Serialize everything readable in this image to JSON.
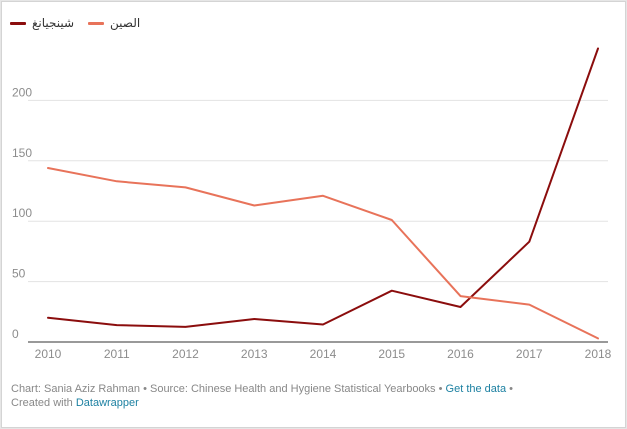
{
  "chart_data": {
    "type": "line",
    "title": "",
    "xlabel": "",
    "ylabel": "",
    "x": [
      2010,
      2011,
      2012,
      2013,
      2014,
      2015,
      2016,
      2017,
      2018
    ],
    "ylim": [
      0,
      250
    ],
    "yticks": [
      0,
      50,
      100,
      150,
      200
    ],
    "xtick_labels": [
      "2010",
      "2011",
      "2012",
      "2013",
      "2014",
      "2015",
      "2016",
      "2017",
      "2018"
    ],
    "ytick_labels": [
      "0",
      "50",
      "100",
      "150",
      "200"
    ],
    "grid": true,
    "legend_position": "top-left",
    "series": [
      {
        "name": "شينجيانغ",
        "color": "#8b0d0d",
        "values": [
          20,
          14,
          12.5,
          19,
          14.5,
          42.5,
          29,
          83,
          243
        ]
      },
      {
        "name": "الصين",
        "color": "#e8735a",
        "values": [
          144,
          133,
          128,
          113,
          121,
          101,
          38,
          31,
          3
        ]
      }
    ]
  },
  "footer": {
    "author": "Chart: Sania Aziz Rahman",
    "separator": " • ",
    "source": "Source: Chinese Health and Hygiene Statistical Yearbooks",
    "get_data_link": "Get the data",
    "created_with": "Created with",
    "tool_link": "Datawrapper"
  }
}
